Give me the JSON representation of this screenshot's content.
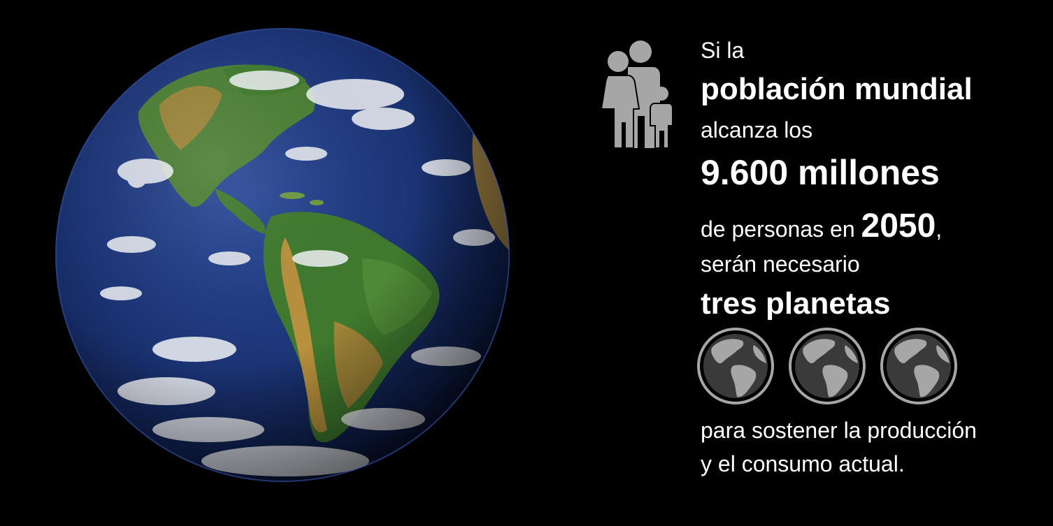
{
  "infographic": {
    "line1": "Si la",
    "line2": "población mundial",
    "line3": "alcanza los",
    "line4": "9.600 millones",
    "line5_prefix": "de personas en ",
    "line5_year": "2050",
    "line5_suffix": ",",
    "line6": "serán necesario",
    "line7": "tres planetas",
    "line8": "para sostener  la producción",
    "line9": "y el consumo actual."
  },
  "icons": {
    "family": "family-icon",
    "planet": "planet-globe-icon",
    "earth": "earth-photo"
  },
  "colors": {
    "background": "#000000",
    "text": "#ffffff",
    "icon_gray": "#a6a6a6",
    "ocean": "#1c3577",
    "land_green": "#3f7a2e",
    "land_brown": "#a8853a",
    "cloud": "#f2f4f7"
  }
}
